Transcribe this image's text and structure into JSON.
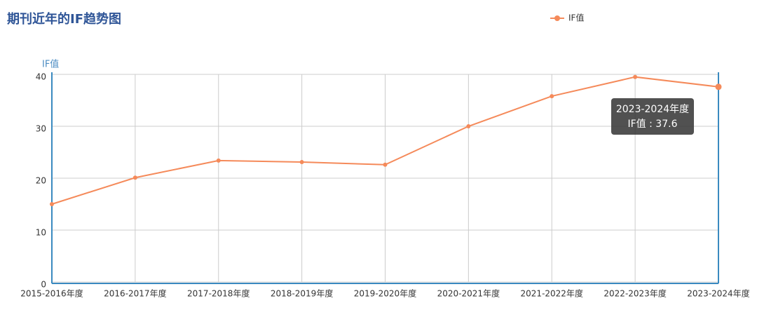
{
  "chart_data": {
    "type": "line",
    "title": "期刊近年的IF趋势图",
    "y_axis_label": "IF值",
    "categories": [
      "2015-2016年度",
      "2016-2017年度",
      "2017-2018年度",
      "2018-2019年度",
      "2019-2020年度",
      "2020-2021年度",
      "2021-2022年度",
      "2022-2023年度",
      "2023-2024年度"
    ],
    "series": [
      {
        "name": "IF值",
        "color": "#f58a5a",
        "values": [
          15.0,
          20.1,
          23.4,
          23.1,
          22.6,
          30.0,
          35.8,
          39.5,
          37.6
        ]
      }
    ],
    "ylim": [
      0,
      40
    ],
    "yticks": [
      0,
      10,
      20,
      30,
      40
    ],
    "grid": true,
    "legend": "top-right",
    "tooltip": {
      "title": "2023-2024年度",
      "text": "IF值 : 37.6"
    }
  }
}
